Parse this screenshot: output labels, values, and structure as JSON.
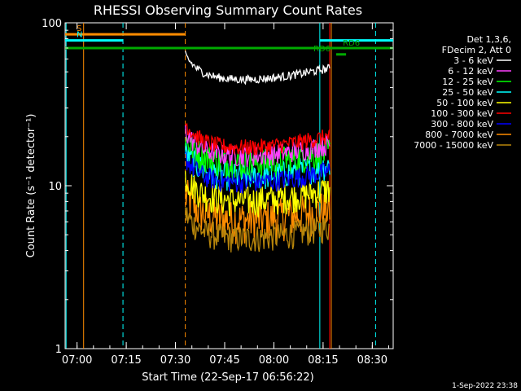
{
  "chart_data": {
    "type": "line",
    "title": "RHESSI Observing Summary Count Rates",
    "xlabel": "Start Time (22-Sep-17 06:56:22)",
    "ylabel": "Count Rate (s⁻¹ detector⁻¹)",
    "y_scale": "log",
    "ylim": [
      1,
      100
    ],
    "xlim": [
      "06:56:22",
      "08:36:22"
    ],
    "x_ticks": [
      "07:00",
      "07:15",
      "07:30",
      "07:45",
      "08:00",
      "08:15",
      "08:30"
    ],
    "y_ticks": [
      "1",
      "10",
      "100"
    ],
    "legend_header": [
      "Det 1,3,6,",
      "FDecim 2, Att 0"
    ],
    "legend_placement": "right",
    "series": [
      {
        "name": "3 - 6 keV",
        "color": "#ffffff",
        "start": "07:33",
        "end": "08:17",
        "level": 47,
        "spread": 0.06
      },
      {
        "name": "6 - 12 keV",
        "color": "#ff40ff",
        "start": "07:33",
        "end": "08:17",
        "level": 16,
        "spread": 0.15
      },
      {
        "name": "12 - 25 keV",
        "color": "#00ff00",
        "start": "07:33",
        "end": "08:17",
        "level": 14.5,
        "spread": 0.22
      },
      {
        "name": "25 - 50 keV",
        "color": "#00ffff",
        "start": "07:33",
        "end": "08:17",
        "level": 12,
        "spread": 0.2
      },
      {
        "name": "50 - 100 keV",
        "color": "#ffff00",
        "start": "07:33",
        "end": "08:17",
        "level": 8.5,
        "spread": 0.22
      },
      {
        "name": "100 - 300 keV",
        "color": "#ff0000",
        "start": "07:33",
        "end": "08:17",
        "level": 18,
        "spread": 0.12
      },
      {
        "name": "300 - 800 keV",
        "color": "#0000ff",
        "start": "07:33",
        "end": "08:17",
        "level": 11,
        "spread": 0.15
      },
      {
        "name": "800 - 7000 keV",
        "color": "#ff8c00",
        "start": "07:33",
        "end": "08:17",
        "level": 6.5,
        "spread": 0.3
      },
      {
        "name": "7000 - 15000 keV",
        "color": "#b8860b",
        "start": "07:33",
        "end": "08:17",
        "level": 5,
        "spread": 0.2
      }
    ],
    "flag_bars": [
      {
        "label": "S",
        "color": "#ff8c00",
        "start": "06:56:22",
        "end": "07:33",
        "y": 85
      },
      {
        "label": "N",
        "color": "#00ffff",
        "start": "06:56:22",
        "end": "07:14",
        "y": 78
      },
      {
        "label": "",
        "color": "#00aa00",
        "start": "06:56:22",
        "end": "08:36:22",
        "y": 70
      },
      {
        "label": "",
        "color": "#00ffff",
        "start": "08:14",
        "end": "08:36:22",
        "y": 78
      },
      {
        "label": "RD6",
        "color": "#00aa00",
        "start": "08:19",
        "end": "08:22",
        "y": 64
      }
    ],
    "vertical_lines": [
      {
        "time": "06:56:40",
        "color": "#00ffff",
        "style": "solid"
      },
      {
        "time": "07:02",
        "color": "#ff8c00",
        "style": "solid"
      },
      {
        "time": "07:14",
        "color": "#00ffff",
        "style": "dashed"
      },
      {
        "time": "07:33",
        "color": "#ff8c00",
        "style": "dashed"
      },
      {
        "time": "08:14",
        "color": "#00ffff",
        "style": "solid"
      },
      {
        "time": "08:17",
        "color": "#ff0000",
        "style": "solid"
      },
      {
        "time": "08:17:30",
        "color": "#ff8c00",
        "style": "solid"
      },
      {
        "time": "08:31",
        "color": "#00ffff",
        "style": "dashed"
      }
    ],
    "annotations": [
      "RD6",
      "RD6"
    ],
    "footer": "1-Sep-2022 23:38",
    "grid": false
  }
}
